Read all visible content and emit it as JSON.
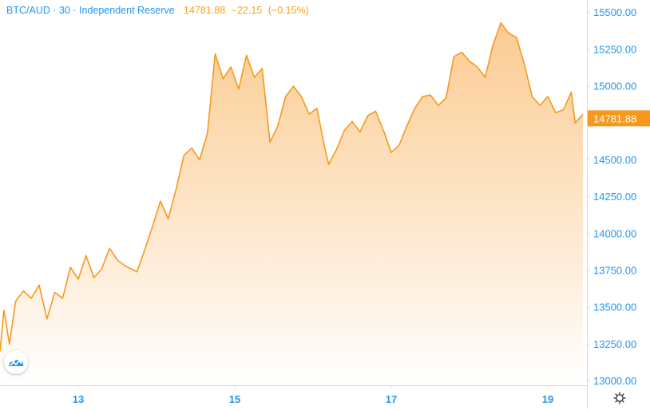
{
  "legend": {
    "symbol": "BTC/AUD",
    "interval": "30",
    "exchange": "Independent Reserve",
    "last": "14781.88",
    "change": "−22.15",
    "change_pct": "(−0.15%)"
  },
  "colors": {
    "line": "#f7981d",
    "fill_top": "#fbc98c",
    "fill_bottom": "#ffffff",
    "axis_text": "#2196f3",
    "label_bg": "#f7981d",
    "axis_line": "#d9d9d9"
  },
  "chart_data": {
    "type": "area",
    "title": "",
    "series": [
      {
        "name": "",
        "points": [
          [
            0,
            13200
          ],
          [
            0.05,
            13480
          ],
          [
            0.12,
            13250
          ],
          [
            0.2,
            13540
          ],
          [
            0.3,
            13610
          ],
          [
            0.4,
            13560
          ],
          [
            0.5,
            13650
          ],
          [
            0.6,
            13420
          ],
          [
            0.7,
            13600
          ],
          [
            0.8,
            13560
          ],
          [
            0.9,
            13770
          ],
          [
            1.0,
            13690
          ],
          [
            1.1,
            13850
          ],
          [
            1.2,
            13700
          ],
          [
            1.3,
            13760
          ],
          [
            1.4,
            13900
          ],
          [
            1.5,
            13820
          ],
          [
            1.6,
            13780
          ],
          [
            1.75,
            13740
          ],
          [
            1.85,
            13890
          ],
          [
            1.95,
            14050
          ],
          [
            2.05,
            14220
          ],
          [
            2.15,
            14100
          ],
          [
            2.25,
            14300
          ],
          [
            2.35,
            14530
          ],
          [
            2.45,
            14580
          ],
          [
            2.55,
            14500
          ],
          [
            2.65,
            14680
          ],
          [
            2.75,
            15220
          ],
          [
            2.85,
            15050
          ],
          [
            2.95,
            15130
          ],
          [
            3.05,
            14980
          ],
          [
            3.15,
            15210
          ],
          [
            3.25,
            15060
          ],
          [
            3.35,
            15120
          ],
          [
            3.45,
            14620
          ],
          [
            3.55,
            14730
          ],
          [
            3.65,
            14930
          ],
          [
            3.75,
            15000
          ],
          [
            3.85,
            14930
          ],
          [
            3.95,
            14810
          ],
          [
            4.05,
            14850
          ],
          [
            4.15,
            14580
          ],
          [
            4.2,
            14470
          ],
          [
            4.3,
            14570
          ],
          [
            4.4,
            14700
          ],
          [
            4.5,
            14760
          ],
          [
            4.6,
            14690
          ],
          [
            4.7,
            14800
          ],
          [
            4.8,
            14830
          ],
          [
            4.9,
            14700
          ],
          [
            5.0,
            14550
          ],
          [
            5.1,
            14600
          ],
          [
            5.2,
            14730
          ],
          [
            5.3,
            14850
          ],
          [
            5.4,
            14930
          ],
          [
            5.5,
            14940
          ],
          [
            5.6,
            14870
          ],
          [
            5.7,
            14920
          ],
          [
            5.8,
            15200
          ],
          [
            5.9,
            15230
          ],
          [
            6.0,
            15170
          ],
          [
            6.1,
            15130
          ],
          [
            6.2,
            15060
          ],
          [
            6.3,
            15280
          ],
          [
            6.4,
            15430
          ],
          [
            6.5,
            15360
          ],
          [
            6.6,
            15330
          ],
          [
            6.7,
            15150
          ],
          [
            6.8,
            14930
          ],
          [
            6.9,
            14870
          ],
          [
            7.0,
            14930
          ],
          [
            7.1,
            14820
          ],
          [
            7.2,
            14840
          ],
          [
            7.3,
            14960
          ],
          [
            7.35,
            14750
          ],
          [
            7.45,
            14810
          ]
        ]
      }
    ],
    "xaxis": {
      "ticks": [
        {
          "value": 1.0,
          "label": "13"
        },
        {
          "value": 3.0,
          "label": "15"
        },
        {
          "value": 5.0,
          "label": "17"
        },
        {
          "value": 7.0,
          "label": "19"
        }
      ],
      "range": [
        0,
        7.5
      ]
    },
    "yaxis": {
      "ticks": [
        {
          "value": 15500,
          "label": "15500.00"
        },
        {
          "value": 15250,
          "label": "15250.00"
        },
        {
          "value": 15000,
          "label": "15000.00"
        },
        {
          "value": 14500,
          "label": "14500.00"
        },
        {
          "value": 14250,
          "label": "14250.00"
        },
        {
          "value": 14000,
          "label": "14000.00"
        },
        {
          "value": 13750,
          "label": "13750.00"
        },
        {
          "value": 13500,
          "label": "13500.00"
        },
        {
          "value": 13250,
          "label": "13250.00"
        },
        {
          "value": 13000,
          "label": "13000.00"
        }
      ],
      "range": [
        12970,
        15585
      ],
      "side": "right"
    },
    "last_value": {
      "value": 14781.88,
      "label": "14781.88"
    },
    "grid": false
  }
}
